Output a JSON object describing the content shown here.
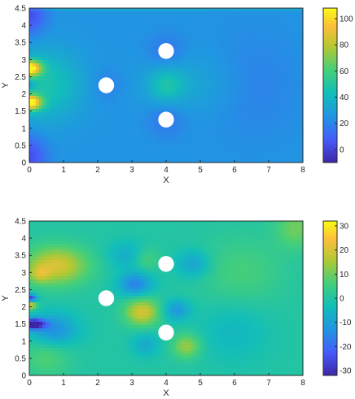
{
  "chart_data": [
    {
      "type": "heatmap",
      "xlabel": "X",
      "ylabel": "Y",
      "xlim": [
        0,
        8
      ],
      "ylim": [
        0,
        4.5
      ],
      "x_ticks": [
        "0",
        "1",
        "2",
        "3",
        "4",
        "5",
        "6",
        "7",
        "8"
      ],
      "y_ticks": [
        "0",
        "0.5",
        "1",
        "1.5",
        "2",
        "2.5",
        "3",
        "3.5",
        "4",
        "4.5"
      ],
      "clim": [
        -10,
        108
      ],
      "colorbar_ticks": [
        "0",
        "20",
        "40",
        "60",
        "80",
        "100"
      ],
      "colormap": "parula",
      "background_level": 25,
      "obstacles": [
        {
          "x": 2.25,
          "y": 2.25,
          "r": 0.23
        },
        {
          "x": 4.0,
          "y": 3.25,
          "r": 0.23
        },
        {
          "x": 4.0,
          "y": 1.25,
          "r": 0.23
        }
      ],
      "features": [
        {
          "x": 0.0,
          "y": 2.75,
          "sx": 0.35,
          "sy": 0.22,
          "v": 80
        },
        {
          "x": 0.0,
          "y": 1.75,
          "sx": 0.35,
          "sy": 0.22,
          "v": 80
        },
        {
          "x": 0.2,
          "y": 2.25,
          "sx": 0.9,
          "sy": 1.1,
          "v": 15
        },
        {
          "x": 0.9,
          "y": 2.25,
          "sx": 0.9,
          "sy": 0.9,
          "v": 10
        },
        {
          "x": 0.0,
          "y": 2.25,
          "sx": 0.15,
          "sy": 0.12,
          "v": -15
        },
        {
          "x": 0.0,
          "y": 4.3,
          "sx": 0.5,
          "sy": 0.6,
          "v": -22
        },
        {
          "x": 0.0,
          "y": 0.2,
          "sx": 0.5,
          "sy": 0.6,
          "v": -22
        },
        {
          "x": 4.0,
          "y": 2.25,
          "sx": 0.5,
          "sy": 0.5,
          "v": 18
        },
        {
          "x": 4.8,
          "y": 2.3,
          "sx": 1.4,
          "sy": 0.9,
          "v": 8
        },
        {
          "x": 6.5,
          "y": 2.25,
          "sx": 1.4,
          "sy": 1.5,
          "v": -6
        },
        {
          "x": 4.0,
          "y": 3.25,
          "sx": 0.55,
          "sy": 0.5,
          "v": -10
        },
        {
          "x": 4.0,
          "y": 1.25,
          "sx": 0.55,
          "sy": 0.5,
          "v": -10
        },
        {
          "x": 2.25,
          "y": 2.25,
          "sx": 0.5,
          "sy": 0.5,
          "v": -6
        },
        {
          "x": 4.0,
          "y": 4.5,
          "sx": 8.0,
          "sy": 0.05,
          "v": 18
        }
      ]
    },
    {
      "type": "heatmap",
      "xlabel": "X",
      "ylabel": "Y",
      "xlim": [
        0,
        8
      ],
      "ylim": [
        0,
        4.5
      ],
      "x_ticks": [
        "0",
        "1",
        "2",
        "3",
        "4",
        "5",
        "6",
        "7",
        "8"
      ],
      "y_ticks": [
        "0",
        "0.5",
        "1",
        "1.5",
        "2",
        "2.5",
        "3",
        "3.5",
        "4",
        "4.5"
      ],
      "clim": [
        -32,
        32
      ],
      "colorbar_ticks": [
        "-30",
        "-20",
        "-10",
        "0",
        "10",
        "20",
        "30"
      ],
      "colormap": "parula",
      "background_level": 0,
      "obstacles": [
        {
          "x": 2.25,
          "y": 2.25,
          "r": 0.23
        },
        {
          "x": 4.0,
          "y": 3.25,
          "r": 0.23
        },
        {
          "x": 4.0,
          "y": 1.25,
          "r": 0.23
        }
      ],
      "features": [
        {
          "x": 0.8,
          "y": 3.2,
          "sx": 0.9,
          "sy": 0.55,
          "v": 20
        },
        {
          "x": 0.3,
          "y": 2.95,
          "sx": 0.3,
          "sy": 0.25,
          "v": 10
        },
        {
          "x": 0.0,
          "y": 2.25,
          "sx": 0.2,
          "sy": 0.12,
          "v": -30
        },
        {
          "x": 0.0,
          "y": 2.05,
          "sx": 0.2,
          "sy": 0.12,
          "v": 24
        },
        {
          "x": 0.1,
          "y": 1.5,
          "sx": 0.35,
          "sy": 0.15,
          "v": -38
        },
        {
          "x": 0.7,
          "y": 1.3,
          "sx": 0.7,
          "sy": 0.5,
          "v": -15
        },
        {
          "x": 0.5,
          "y": 0.6,
          "sx": 0.7,
          "sy": 0.6,
          "v": 8
        },
        {
          "x": 3.3,
          "y": 1.85,
          "sx": 0.5,
          "sy": 0.4,
          "v": 20
        },
        {
          "x": 3.1,
          "y": 2.65,
          "sx": 0.5,
          "sy": 0.35,
          "v": -16
        },
        {
          "x": 2.9,
          "y": 3.5,
          "sx": 0.6,
          "sy": 0.4,
          "v": -8
        },
        {
          "x": 4.8,
          "y": 3.25,
          "sx": 0.5,
          "sy": 0.4,
          "v": -10
        },
        {
          "x": 3.4,
          "y": 3.4,
          "sx": 0.4,
          "sy": 0.35,
          "v": 8
        },
        {
          "x": 4.3,
          "y": 1.9,
          "sx": 0.4,
          "sy": 0.3,
          "v": -12
        },
        {
          "x": 4.6,
          "y": 0.85,
          "sx": 0.4,
          "sy": 0.35,
          "v": 14
        },
        {
          "x": 3.4,
          "y": 0.9,
          "sx": 0.4,
          "sy": 0.35,
          "v": -8
        },
        {
          "x": 6.2,
          "y": 3.0,
          "sx": 1.2,
          "sy": 1.0,
          "v": 6
        },
        {
          "x": 6.0,
          "y": 1.3,
          "sx": 1.0,
          "sy": 0.9,
          "v": -5
        },
        {
          "x": 7.8,
          "y": 4.3,
          "sx": 0.6,
          "sy": 0.6,
          "v": 10
        }
      ]
    }
  ]
}
